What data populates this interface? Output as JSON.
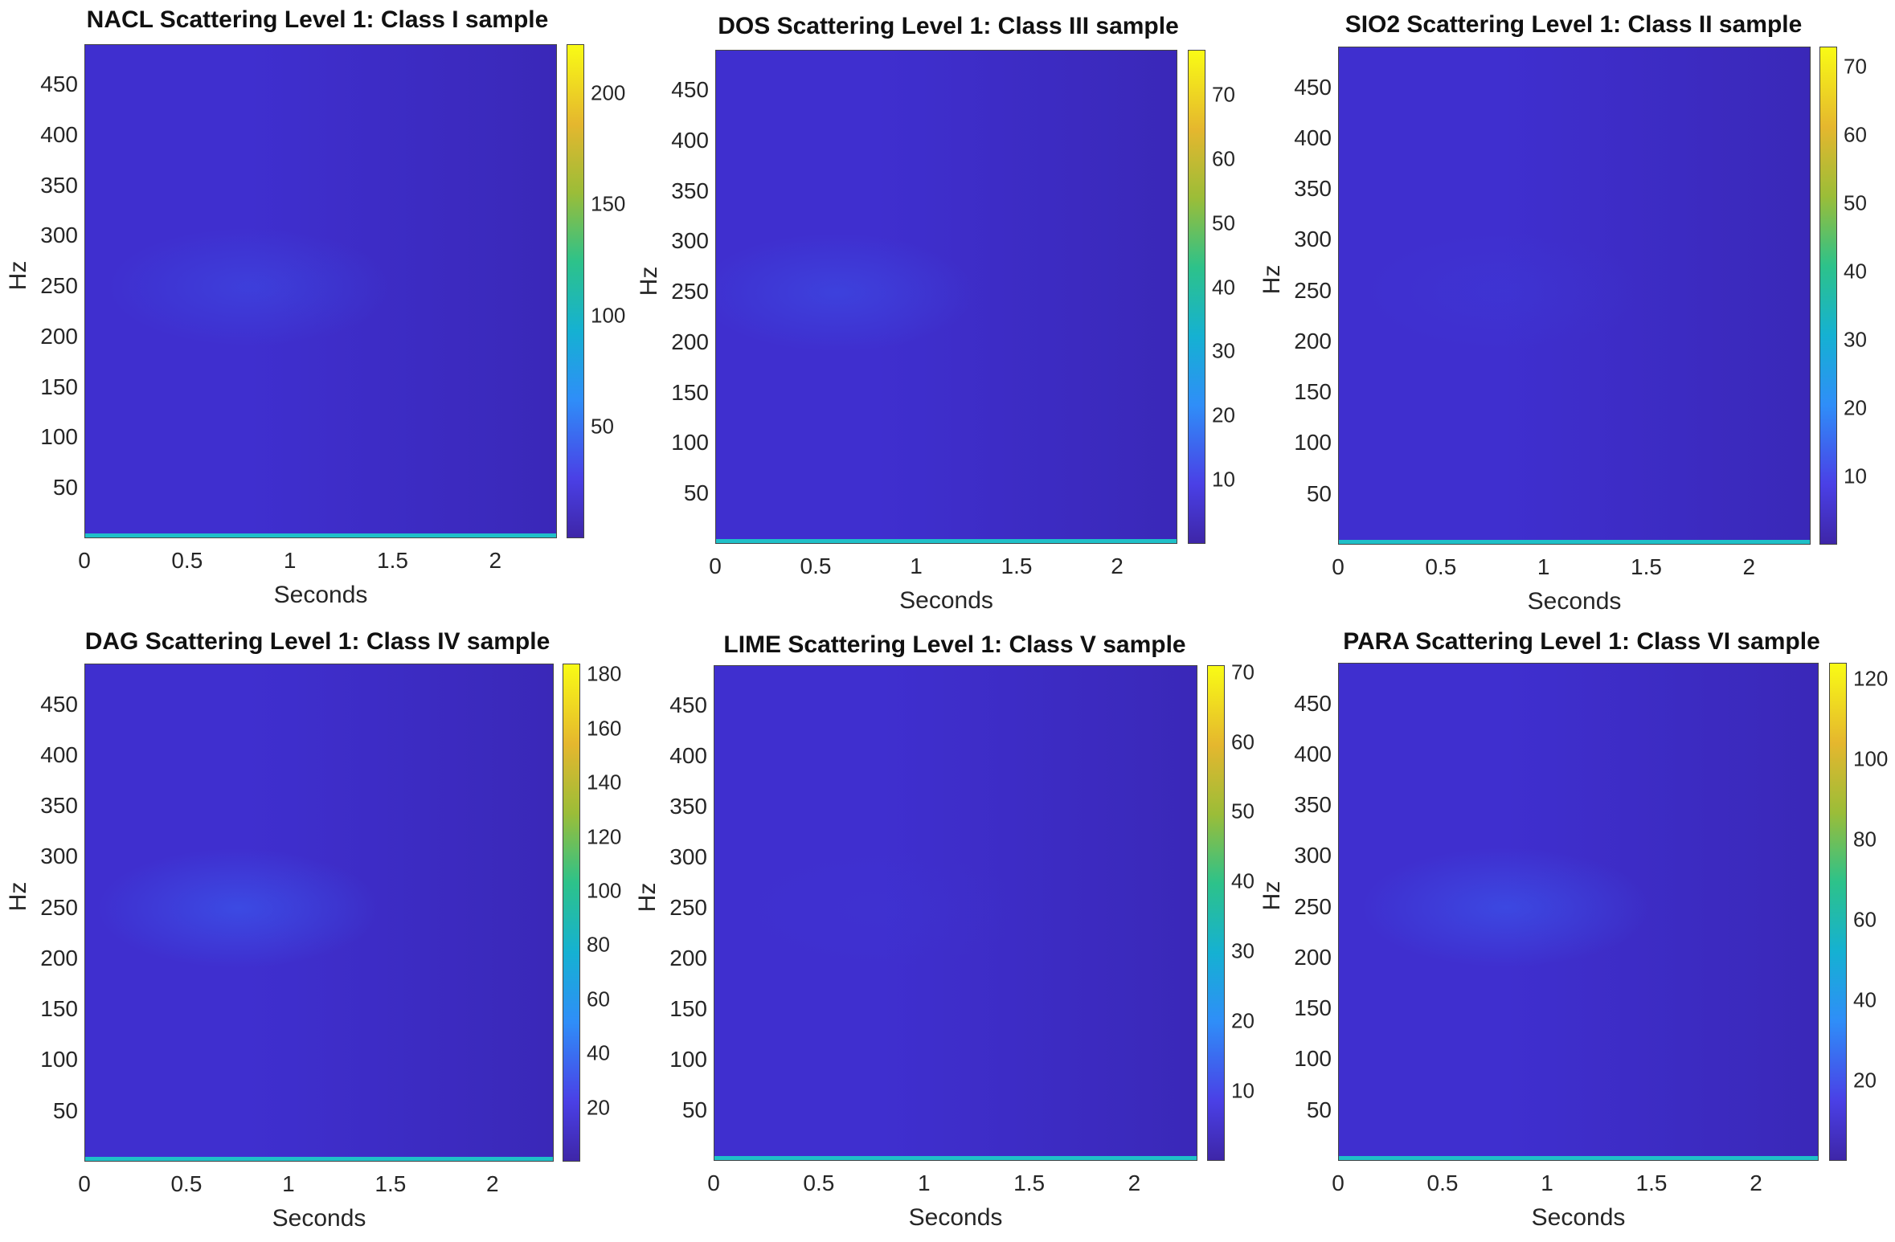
{
  "chart_data": [
    {
      "type": "heatmap",
      "title": "NACL Scattering Level 1: Class I sample",
      "xlabel": "Seconds",
      "ylabel": "Hz",
      "xlim": [
        0,
        2.3
      ],
      "ylim": [
        0,
        490
      ],
      "x_ticks": [
        0,
        0.5,
        1,
        1.5,
        2
      ],
      "x_tick_labels": [
        "0",
        "0.5",
        "1",
        "1.5",
        "2"
      ],
      "y_ticks": [
        50,
        100,
        150,
        200,
        250,
        300,
        350,
        400,
        450
      ],
      "colorbar": {
        "range": [
          0,
          222
        ],
        "ticks": [
          50,
          100,
          150,
          200
        ],
        "labels": [
          "50",
          "100",
          "150",
          "200"
        ]
      },
      "hotspot": {
        "x": 0.8,
        "y": 250,
        "intensity": 0.35
      }
    },
    {
      "type": "heatmap",
      "title": "DOS Scattering Level 1: Class III sample",
      "xlabel": "Seconds",
      "ylabel": "Hz",
      "xlim": [
        0,
        2.3
      ],
      "ylim": [
        0,
        490
      ],
      "x_ticks": [
        0,
        0.5,
        1,
        1.5,
        2
      ],
      "x_tick_labels": [
        "0",
        "0.5",
        "1",
        "1.5",
        "2"
      ],
      "y_ticks": [
        50,
        100,
        150,
        200,
        250,
        300,
        350,
        400,
        450
      ],
      "colorbar": {
        "range": [
          0,
          77
        ],
        "ticks": [
          10,
          20,
          30,
          40,
          50,
          60,
          70
        ],
        "labels": [
          "10",
          "20",
          "30",
          "40",
          "50",
          "60",
          "70"
        ]
      },
      "hotspot": {
        "x": 0.6,
        "y": 250,
        "intensity": 0.4
      }
    },
    {
      "type": "heatmap",
      "title": "SIO2 Scattering Level 1: Class II sample",
      "xlabel": "Seconds",
      "ylabel": "Hz",
      "xlim": [
        0,
        2.3
      ],
      "ylim": [
        0,
        490
      ],
      "x_ticks": [
        0,
        0.5,
        1,
        1.5,
        2
      ],
      "x_tick_labels": [
        "0",
        "0.5",
        "1",
        "1.5",
        "2"
      ],
      "y_ticks": [
        50,
        100,
        150,
        200,
        250,
        300,
        350,
        400,
        450
      ],
      "colorbar": {
        "range": [
          0,
          73
        ],
        "ticks": [
          10,
          20,
          30,
          40,
          50,
          60,
          70
        ],
        "labels": [
          "10",
          "20",
          "30",
          "40",
          "50",
          "60",
          "70"
        ]
      },
      "hotspot": {
        "x": 0.8,
        "y": 250,
        "intensity": 0.1
      }
    },
    {
      "type": "heatmap",
      "title": "DAG Scattering Level 1: Class IV sample",
      "xlabel": "Seconds",
      "ylabel": "Hz",
      "xlim": [
        0,
        2.3
      ],
      "ylim": [
        0,
        490
      ],
      "x_ticks": [
        0,
        0.5,
        1,
        1.5,
        2
      ],
      "x_tick_labels": [
        "0",
        "0.5",
        "1",
        "1.5",
        "2"
      ],
      "y_ticks": [
        50,
        100,
        150,
        200,
        250,
        300,
        350,
        400,
        450
      ],
      "colorbar": {
        "range": [
          0,
          184
        ],
        "ticks": [
          20,
          40,
          60,
          80,
          100,
          120,
          140,
          160,
          180
        ],
        "labels": [
          "20",
          "40",
          "60",
          "80",
          "100",
          "120",
          "140",
          "160",
          "180"
        ]
      },
      "hotspot": {
        "x": 0.75,
        "y": 250,
        "intensity": 0.6
      }
    },
    {
      "type": "heatmap",
      "title": "LIME Scattering Level 1: Class V sample",
      "xlabel": "Seconds",
      "ylabel": "Hz",
      "xlim": [
        0,
        2.3
      ],
      "ylim": [
        0,
        490
      ],
      "x_ticks": [
        0,
        0.5,
        1,
        1.5,
        2
      ],
      "x_tick_labels": [
        "0",
        "0.5",
        "1",
        "1.5",
        "2"
      ],
      "y_ticks": [
        50,
        100,
        150,
        200,
        250,
        300,
        350,
        400,
        450
      ],
      "colorbar": {
        "range": [
          0,
          71
        ],
        "ticks": [
          10,
          20,
          30,
          40,
          50,
          60,
          70
        ],
        "labels": [
          "10",
          "20",
          "30",
          "40",
          "50",
          "60",
          "70"
        ]
      },
      "hotspot": {
        "x": 0.8,
        "y": 250,
        "intensity": 0.05
      }
    },
    {
      "type": "heatmap",
      "title": "PARA Scattering Level 1: Class VI sample",
      "xlabel": "Seconds",
      "ylabel": "Hz",
      "xlim": [
        0,
        2.3
      ],
      "ylim": [
        0,
        490
      ],
      "x_ticks": [
        0,
        0.5,
        1,
        1.5,
        2
      ],
      "x_tick_labels": [
        "0",
        "0.5",
        "1",
        "1.5",
        "2"
      ],
      "y_ticks": [
        50,
        100,
        150,
        200,
        250,
        300,
        350,
        400,
        450
      ],
      "colorbar": {
        "range": [
          0,
          124
        ],
        "ticks": [
          20,
          40,
          60,
          80,
          100,
          120
        ],
        "labels": [
          "20",
          "40",
          "60",
          "80",
          "100",
          "120"
        ]
      },
      "hotspot": {
        "x": 0.8,
        "y": 250,
        "intensity": 0.55
      }
    }
  ],
  "colors": {
    "base": "#3f2fcf",
    "base_dark": "#3a28b8",
    "hot": "#3a5cf0",
    "edge": "#1fc0c8"
  }
}
